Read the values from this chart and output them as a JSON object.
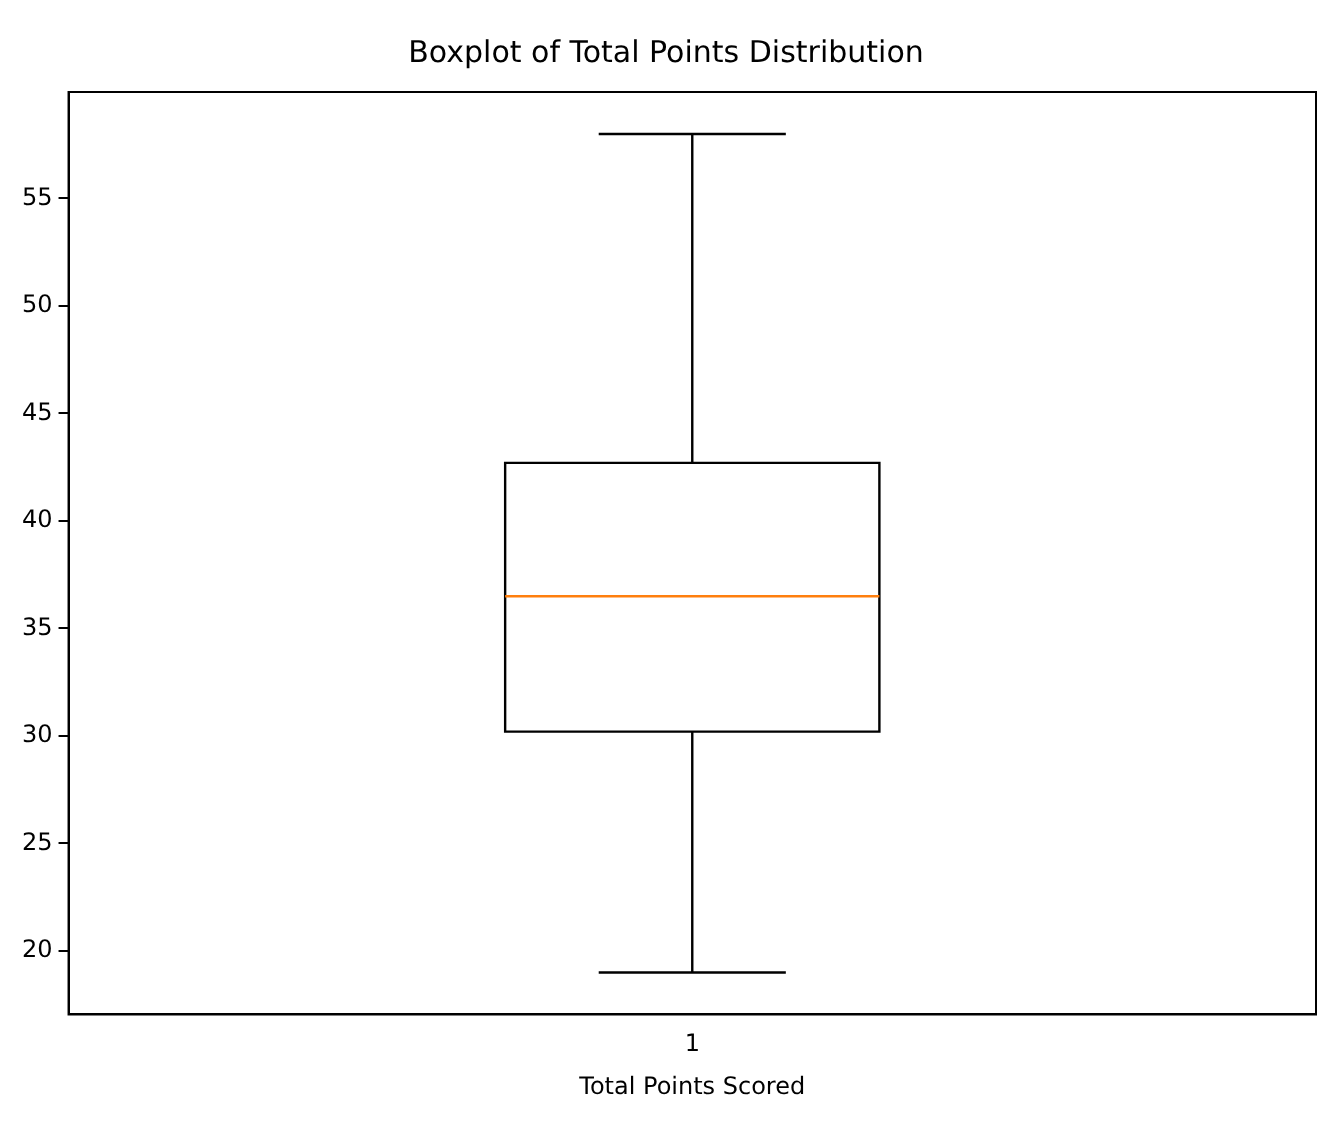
{
  "chart_data": {
    "type": "box",
    "title": "Boxplot of Total Points Distribution",
    "xlabel": "Total Points Scored",
    "categories": [
      "1"
    ],
    "boxes": [
      {
        "low": 19,
        "q1": 30.2,
        "median": 36.5,
        "q3": 42.7,
        "high": 58
      }
    ],
    "ylim": [
      17.05,
      59.95
    ],
    "yticks": [
      20,
      25,
      30,
      35,
      40,
      45,
      50,
      55
    ],
    "grid": false
  }
}
